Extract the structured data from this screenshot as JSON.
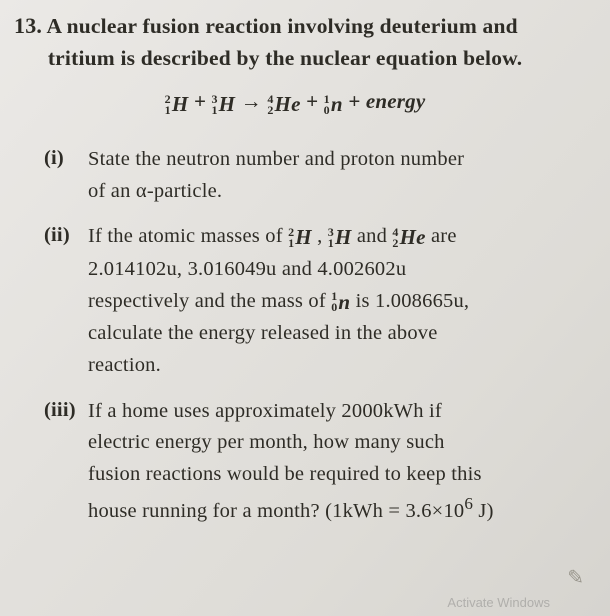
{
  "question": {
    "number": "13.",
    "stem_l1": "A nuclear fusion reaction involving deuterium and",
    "stem_l2": "tritium is described by the nuclear equation below.",
    "equation": {
      "r1": {
        "a": "2",
        "z": "1",
        "sym": "H"
      },
      "plus1": "+",
      "r2": {
        "a": "3",
        "z": "1",
        "sym": "H"
      },
      "arrow": "→",
      "p1": {
        "a": "4",
        "z": "2",
        "sym": "He"
      },
      "plus2": "+",
      "p2": {
        "a": "1",
        "z": "0",
        "sym": "n"
      },
      "plus3": "+",
      "energy": "energy"
    },
    "parts": {
      "i": {
        "label": "(i)",
        "l1": "State the neutron number and proton number",
        "l2": "of an α-particle."
      },
      "ii": {
        "label": "(ii)",
        "pre": "If the atomic masses of ",
        "n1": {
          "a": "2",
          "z": "1",
          "sym": "H"
        },
        "comma": " , ",
        "n2": {
          "a": "3",
          "z": "1",
          "sym": "H"
        },
        "and1": "  and  ",
        "n3": {
          "a": "4",
          "z": "2",
          "sym": "He"
        },
        "are": "  are",
        "l2": "2.014102u, 3.016049u and 4.002602u",
        "l3a": "respectively and the mass of  ",
        "n4": {
          "a": "1",
          "z": "0",
          "sym": "n"
        },
        "l3b": "  is 1.008665u,",
        "l4": "calculate the energy released in the above",
        "l5": "reaction."
      },
      "iii": {
        "label": "(iii)",
        "l1": "If a home uses approximately 2000kWh if",
        "l2": "electric energy per month, how many such",
        "l3": "fusion reactions would be required to keep this",
        "l4a": "house running for a month? (1kWh = 3.6×10",
        "exp": "6",
        "l4b": " J)"
      }
    }
  },
  "activate": "Activate Windows"
}
